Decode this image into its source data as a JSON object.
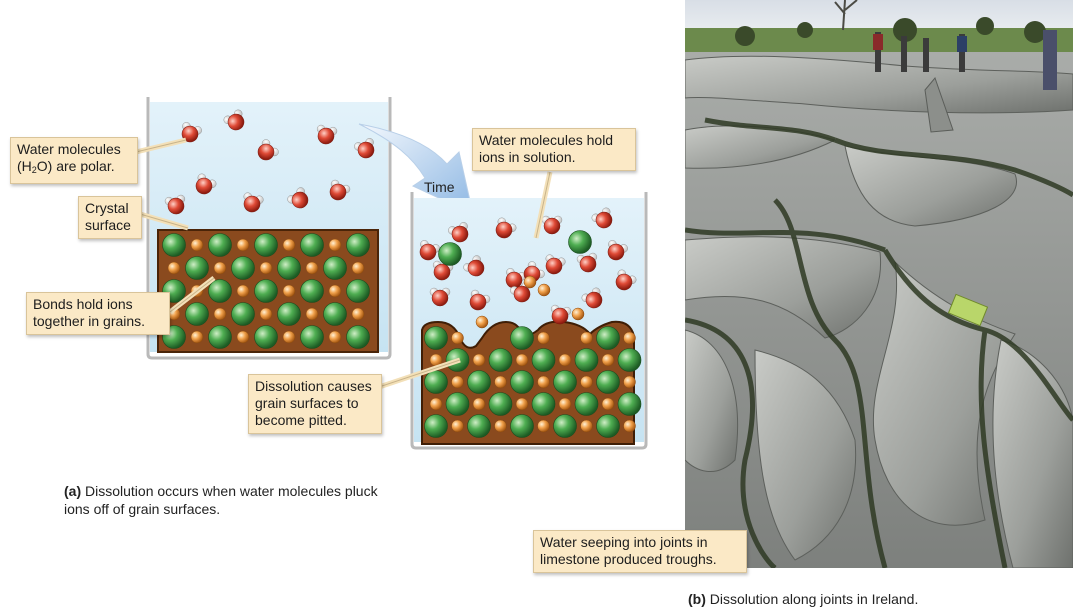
{
  "labels": {
    "water_polar_line1": "Water molecules",
    "water_polar_h": "(H",
    "water_polar_sub": "2",
    "water_polar_rest": "O) are polar.",
    "crystal_surface_line1": "Crystal",
    "crystal_surface_line2": "surface",
    "bonds_line1": "Bonds hold ions",
    "bonds_line2": "together in grains.",
    "time": "Time",
    "hold_line1": "Water molecules hold",
    "hold_line2": "ions in solution.",
    "pitted_line1": "Dissolution causes",
    "pitted_line2": "grain surfaces to",
    "pitted_line3": "become pitted.",
    "troughs_line1": "Water seeping into joints in",
    "troughs_line2": "limestone produced troughs."
  },
  "captions": {
    "a_tag": "(a)",
    "a_line1": "Dissolution occurs when water molecules pluck",
    "a_line2": "ions off of grain surfaces.",
    "b_tag": "(b)",
    "b_text": "Dissolution along joints in Ireland."
  },
  "colors": {
    "water": "#d4ebf6",
    "crystal_bg": "#8a4a1e",
    "green_ion": "#3f9a46",
    "orange_ion": "#e8913a",
    "oxygen": "#d9402f",
    "callout_bg": "#fbe9c6",
    "arrow": "#9ec3e6"
  },
  "icons": {
    "green_ion": "large-green-sphere",
    "orange_ion": "small-orange-sphere",
    "water_molecule": "red-white-molecule"
  }
}
